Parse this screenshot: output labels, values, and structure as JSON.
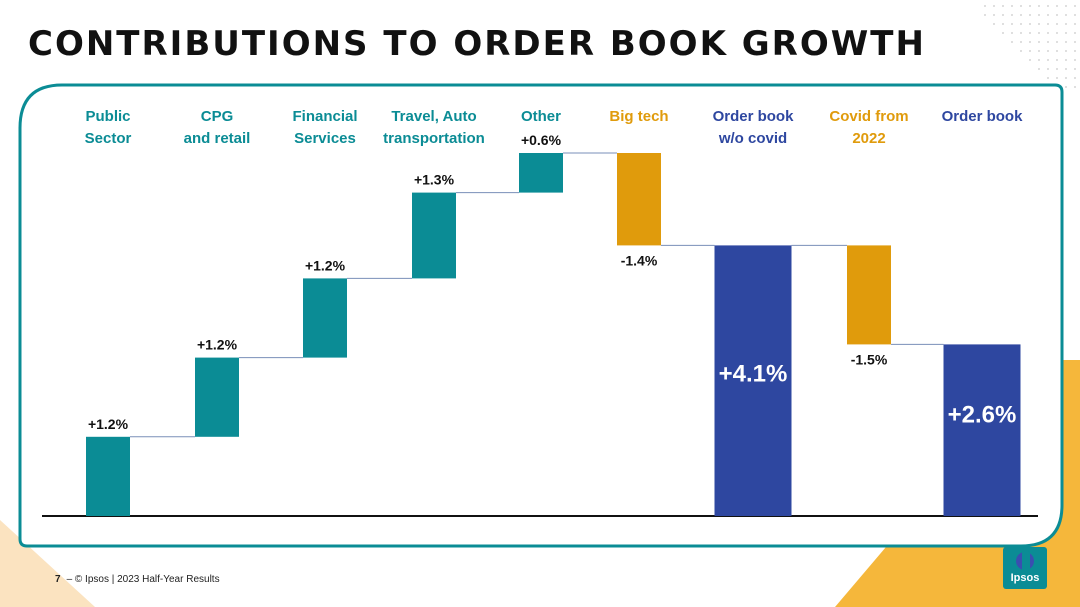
{
  "title": "CONTRIBUTIONS TO ORDER BOOK GROWTH",
  "footer": {
    "page_number": "7",
    "separator": "–",
    "text": "© Ipsos | 2023 Half-Year Results"
  },
  "logo": {
    "text": "Ipsos"
  },
  "colors": {
    "teal": "#0b8c95",
    "orange": "#e09b0c",
    "navy": "#2e47a0",
    "frame": "#0b8c95",
    "accent_yellow": "#f5b73b"
  },
  "chart_data": {
    "type": "bar",
    "subtype": "waterfall",
    "unit": "%",
    "categories": [
      {
        "label": [
          "Public",
          "Sector"
        ],
        "color": "teal"
      },
      {
        "label": [
          "CPG",
          "and retail"
        ],
        "color": "teal"
      },
      {
        "label": [
          "Financial",
          "Services"
        ],
        "color": "teal"
      },
      {
        "label": [
          "Travel, Auto",
          "transportation"
        ],
        "color": "teal"
      },
      {
        "label": [
          "Other"
        ],
        "color": "teal"
      },
      {
        "label": [
          "Big tech"
        ],
        "color": "orange"
      },
      {
        "label": [
          "Order book",
          "w/o covid"
        ],
        "color": "navy"
      },
      {
        "label": [
          "Covid from",
          "2022"
        ],
        "color": "orange"
      },
      {
        "label": [
          "Order book"
        ],
        "color": "navy"
      }
    ],
    "values": [
      1.2,
      1.2,
      1.2,
      1.3,
      0.6,
      -1.4,
      4.1,
      -1.5,
      2.6
    ],
    "kinds": [
      "delta",
      "delta",
      "delta",
      "delta",
      "delta",
      "delta",
      "total",
      "delta",
      "total"
    ],
    "data_labels": [
      "+1.2%",
      "+1.2%",
      "+1.2%",
      "+1.3%",
      "+0.6%",
      "-1.4%",
      "+4.1%",
      "-1.5%",
      "+2.6%"
    ],
    "ylim": [
      0,
      5.5
    ],
    "grid": false,
    "legend": "none"
  }
}
